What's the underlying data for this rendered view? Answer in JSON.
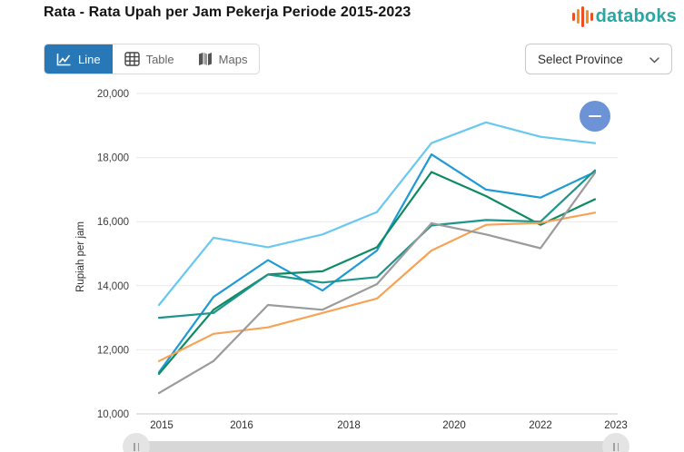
{
  "header": {
    "title": "Rata - Rata Upah per Jam Pekerja Periode 2015-2023",
    "logo_text": "databoks"
  },
  "toolbar": {
    "tabs": [
      {
        "label": "Line",
        "active": true
      },
      {
        "label": "Table",
        "active": false
      },
      {
        "label": "Maps",
        "active": false
      }
    ],
    "province_selector": "Select Province"
  },
  "icons": {
    "tab_line": "line-chart-icon",
    "tab_table": "table-grid-icon",
    "tab_maps": "folded-map-icon",
    "province": "chevron-down-icon",
    "chart_button": "minus-icon",
    "slider_handles": "grip-icon"
  },
  "colors": {
    "active_tab": "#2878b8",
    "logo_teal": "#2aa7a2",
    "logo_orange": "#f68b1f",
    "logo_red": "#ee4e23",
    "zoom_out_button": "#6b93d6",
    "gridline": "#e9e9e9",
    "axis_line": "#c9c9c9"
  },
  "chart_data": {
    "type": "line",
    "title": "Rata - Rata Upah per Jam Pekerja Periode 2015-2023",
    "xlabel": "",
    "ylabel": "Rupiah per jam",
    "x": [
      2015,
      2016,
      2017,
      2018,
      2019,
      2020,
      2021,
      2022,
      2023
    ],
    "x_tick_labels": [
      "2015",
      "2016",
      "2018",
      "2020",
      "2022",
      "2023"
    ],
    "ylim": [
      10000,
      20000
    ],
    "y_ticks": [
      10000,
      12000,
      14000,
      16000,
      18000,
      20000
    ],
    "y_tick_labels": [
      "10,000",
      "12,000",
      "14,000",
      "16,000",
      "18,000",
      "20,000"
    ],
    "grid": true,
    "legend": "none",
    "series": [
      {
        "name": "series-skyblue",
        "color": "#69c8f1",
        "values": [
          13400,
          15500,
          15200,
          15600,
          16300,
          18450,
          19100,
          18650,
          18450
        ]
      },
      {
        "name": "series-blue",
        "color": "#1f9ad6",
        "values": [
          11300,
          13650,
          14800,
          13850,
          15100,
          18100,
          17000,
          16750,
          17550
        ]
      },
      {
        "name": "series-green",
        "color": "#0e8a63",
        "values": [
          11250,
          13250,
          14350,
          14450,
          15200,
          17550,
          16800,
          15900,
          16700
        ]
      },
      {
        "name": "series-teal",
        "color": "#1f948c",
        "values": [
          13000,
          13150,
          14350,
          14100,
          14270,
          15880,
          16050,
          16000,
          17600
        ]
      },
      {
        "name": "series-orange",
        "color": "#f7a255",
        "values": [
          11650,
          12500,
          12700,
          13150,
          13600,
          15100,
          15900,
          15960,
          16280
        ]
      },
      {
        "name": "series-gray",
        "color": "#9b9b9b",
        "values": [
          10650,
          11650,
          13400,
          13250,
          14050,
          15950,
          15600,
          15170,
          17520
        ]
      }
    ]
  },
  "chart_controls": {
    "zoom_out": "minus"
  }
}
